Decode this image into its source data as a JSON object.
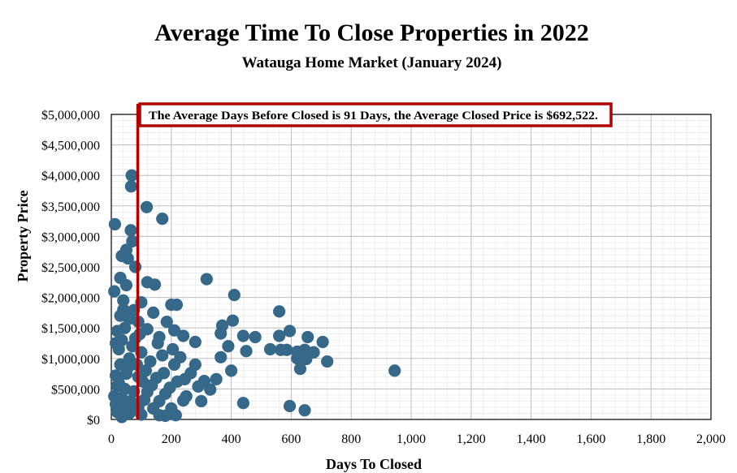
{
  "chart_data": {
    "type": "scatter",
    "title": "Average Time To Close Properties in 2022",
    "subtitle": "Watauga Home Market (January 2024)",
    "xlabel": "Days To Closed",
    "ylabel": "Property Price",
    "xlim": [
      0,
      2000
    ],
    "ylim": [
      0,
      5000000
    ],
    "x_ticks": [
      0,
      200,
      400,
      600,
      800,
      1000,
      1200,
      1400,
      1600,
      1800,
      2000
    ],
    "x_tick_labels": [
      "0",
      "200",
      "400",
      "600",
      "800",
      "1,000",
      "1,200",
      "1,400",
      "1,600",
      "1,800",
      "2,000"
    ],
    "y_ticks": [
      0,
      500000,
      1000000,
      1500000,
      2000000,
      2500000,
      3000000,
      3500000,
      4000000,
      4500000,
      5000000
    ],
    "y_tick_labels": [
      "$0",
      "$500,000",
      "$1,000,000",
      "$1,500,000",
      "$2,000,000",
      "$2,500,000",
      "$3,000,000",
      "$3,500,000",
      "$4,000,000",
      "$4,500,000",
      "$5,000,000"
    ],
    "grid": true,
    "marker_color": "#36688a",
    "annotation_color": "#b00000",
    "reference_line_x": 91,
    "annotation": "The Average Days Before Closed is 91 Days, the Average Closed Price is $692,522.",
    "points": [
      [
        68,
        4000000
      ],
      [
        66,
        3820000
      ],
      [
        118,
        3480000
      ],
      [
        12,
        3200000
      ],
      [
        65,
        3100000
      ],
      [
        170,
        3290000
      ],
      [
        70,
        2920000
      ],
      [
        50,
        2780000
      ],
      [
        35,
        2680000
      ],
      [
        55,
        2640000
      ],
      [
        80,
        2500000
      ],
      [
        30,
        2320000
      ],
      [
        10,
        2100000
      ],
      [
        50,
        2200000
      ],
      [
        120,
        2250000
      ],
      [
        145,
        2210000
      ],
      [
        318,
        2300000
      ],
      [
        410,
        2040000
      ],
      [
        40,
        1950000
      ],
      [
        100,
        1920000
      ],
      [
        200,
        1880000
      ],
      [
        218,
        1880000
      ],
      [
        560,
        1770000
      ],
      [
        75,
        1790000
      ],
      [
        140,
        1750000
      ],
      [
        30,
        1700000
      ],
      [
        60,
        1650000
      ],
      [
        90,
        1600000
      ],
      [
        405,
        1620000
      ],
      [
        185,
        1600000
      ],
      [
        370,
        1540000
      ],
      [
        20,
        1450000
      ],
      [
        45,
        1500000
      ],
      [
        120,
        1480000
      ],
      [
        210,
        1460000
      ],
      [
        365,
        1410000
      ],
      [
        440,
        1370000
      ],
      [
        480,
        1350000
      ],
      [
        560,
        1370000
      ],
      [
        595,
        1450000
      ],
      [
        655,
        1350000
      ],
      [
        240,
        1370000
      ],
      [
        15,
        1250000
      ],
      [
        35,
        1300000
      ],
      [
        80,
        1330000
      ],
      [
        160,
        1350000
      ],
      [
        280,
        1270000
      ],
      [
        705,
        1270000
      ],
      [
        390,
        1200000
      ],
      [
        530,
        1150000
      ],
      [
        565,
        1140000
      ],
      [
        585,
        1140000
      ],
      [
        620,
        1110000
      ],
      [
        645,
        1140000
      ],
      [
        675,
        1100000
      ],
      [
        450,
        1120000
      ],
      [
        25,
        1150000
      ],
      [
        100,
        1100000
      ],
      [
        170,
        1050000
      ],
      [
        230,
        1020000
      ],
      [
        365,
        1020000
      ],
      [
        720,
        950000
      ],
      [
        620,
        1000000
      ],
      [
        650,
        990000
      ],
      [
        60,
        1000000
      ],
      [
        130,
        950000
      ],
      [
        210,
        900000
      ],
      [
        280,
        900000
      ],
      [
        630,
        830000
      ],
      [
        400,
        800000
      ],
      [
        945,
        800000
      ],
      [
        15,
        720000
      ],
      [
        50,
        750000
      ],
      [
        90,
        700000
      ],
      [
        150,
        680000
      ],
      [
        220,
        620000
      ],
      [
        310,
        630000
      ],
      [
        350,
        660000
      ],
      [
        290,
        540000
      ],
      [
        330,
        490000
      ],
      [
        20,
        550000
      ],
      [
        45,
        500000
      ],
      [
        75,
        460000
      ],
      [
        120,
        450000
      ],
      [
        180,
        420000
      ],
      [
        250,
        380000
      ],
      [
        10,
        380000
      ],
      [
        35,
        350000
      ],
      [
        65,
        300000
      ],
      [
        110,
        320000
      ],
      [
        160,
        300000
      ],
      [
        240,
        310000
      ],
      [
        300,
        300000
      ],
      [
        440,
        270000
      ],
      [
        15,
        250000
      ],
      [
        50,
        220000
      ],
      [
        90,
        200000
      ],
      [
        140,
        180000
      ],
      [
        200,
        180000
      ],
      [
        595,
        220000
      ],
      [
        645,
        150000
      ],
      [
        20,
        120000
      ],
      [
        60,
        100000
      ],
      [
        100,
        80000
      ],
      [
        160,
        70000
      ],
      [
        215,
        70000
      ],
      [
        35,
        40000
      ],
      [
        180,
        60000
      ],
      [
        25,
        600000
      ],
      [
        55,
        850000
      ],
      [
        85,
        900000
      ],
      [
        105,
        620000
      ],
      [
        135,
        560000
      ],
      [
        195,
        520000
      ],
      [
        265,
        760000
      ],
      [
        70,
        1200000
      ],
      [
        30,
        900000
      ],
      [
        115,
        800000
      ],
      [
        175,
        760000
      ],
      [
        245,
        660000
      ],
      [
        40,
        1800000
      ],
      [
        95,
        1400000
      ],
      [
        155,
        1250000
      ],
      [
        205,
        1150000
      ]
    ]
  }
}
